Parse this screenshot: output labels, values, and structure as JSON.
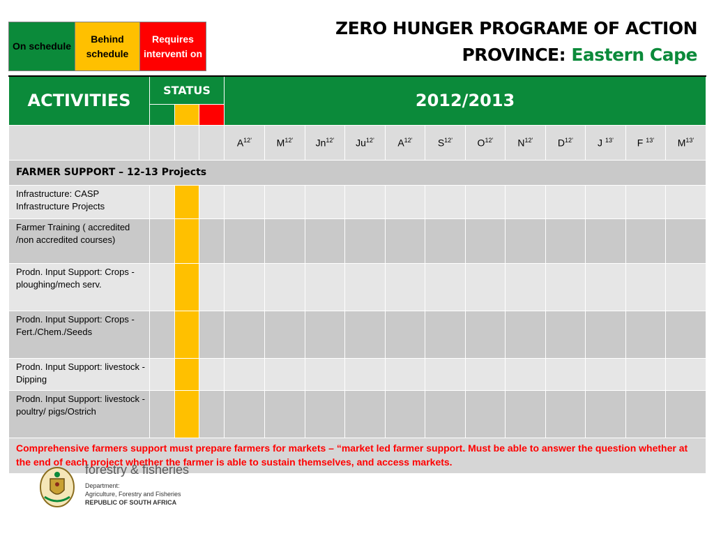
{
  "legend": {
    "on_schedule": "On schedule",
    "behind_schedule": "Behind schedule",
    "requires_intervention": "Requires interventi on",
    "colors": {
      "green": "#0b8a3a",
      "yellow": "#ffc000",
      "red": "#ff0000"
    }
  },
  "title": {
    "line1": "ZERO HUNGER PROGRAME OF ACTION",
    "province_label": "PROVINCE:",
    "province_value": "Eastern Cape"
  },
  "table": {
    "activities_header": "ACTIVITIES",
    "status_header": "STATUS",
    "year_header": "2012/2013",
    "months": [
      {
        "m": "A",
        "y": "12’"
      },
      {
        "m": "M",
        "y": "12’"
      },
      {
        "m": "Jn",
        "y": "12’"
      },
      {
        "m": "Ju",
        "y": "12’"
      },
      {
        "m": "A",
        "y": "12’"
      },
      {
        "m": "S",
        "y": "12’"
      },
      {
        "m": "O",
        "y": "12’"
      },
      {
        "m": "N",
        "y": "12’"
      },
      {
        "m": "D",
        "y": "12’"
      },
      {
        "m": "J ",
        "y": "13’"
      },
      {
        "m": "F ",
        "y": "13’"
      },
      {
        "m": "M",
        "y": "13’"
      }
    ],
    "section_title": "FARMER SUPPORT – 12-13 Projects",
    "activities": [
      {
        "label": "Infrastructure:  CASP Infrastructure Projects",
        "status": "yellow"
      },
      {
        "label": "Farmer Training ( accredited /non accredited courses)",
        "status": "yellow"
      },
      {
        "label": "Prodn. Input Support: Crops - ploughing/mech serv.",
        "status": "yellow"
      },
      {
        "label": "Prodn. Input Support: Crops - Fert./Chem./Seeds",
        "status": "yellow"
      },
      {
        "label": "Prodn. Input Support: livestock - Dipping",
        "status": "yellow"
      },
      {
        "label": "Prodn. Input Support: livestock - poultry/ pigs/Ostrich",
        "status": "yellow"
      }
    ],
    "note": "Comprehensive farmers support must prepare farmers for markets – “market led farmer support. Must be able to answer the question whether at the end of each project whether the farmer is able to sustain themselves, and access markets."
  },
  "footer": {
    "brand_partial": "forestry & fisheries",
    "dept_line1": "Department:",
    "dept_line2": "Agriculture, Forestry and Fisheries",
    "dept_line3": "REPUBLIC OF SOUTH AFRICA",
    "crest_icon": "coat-of-arms-icon"
  }
}
